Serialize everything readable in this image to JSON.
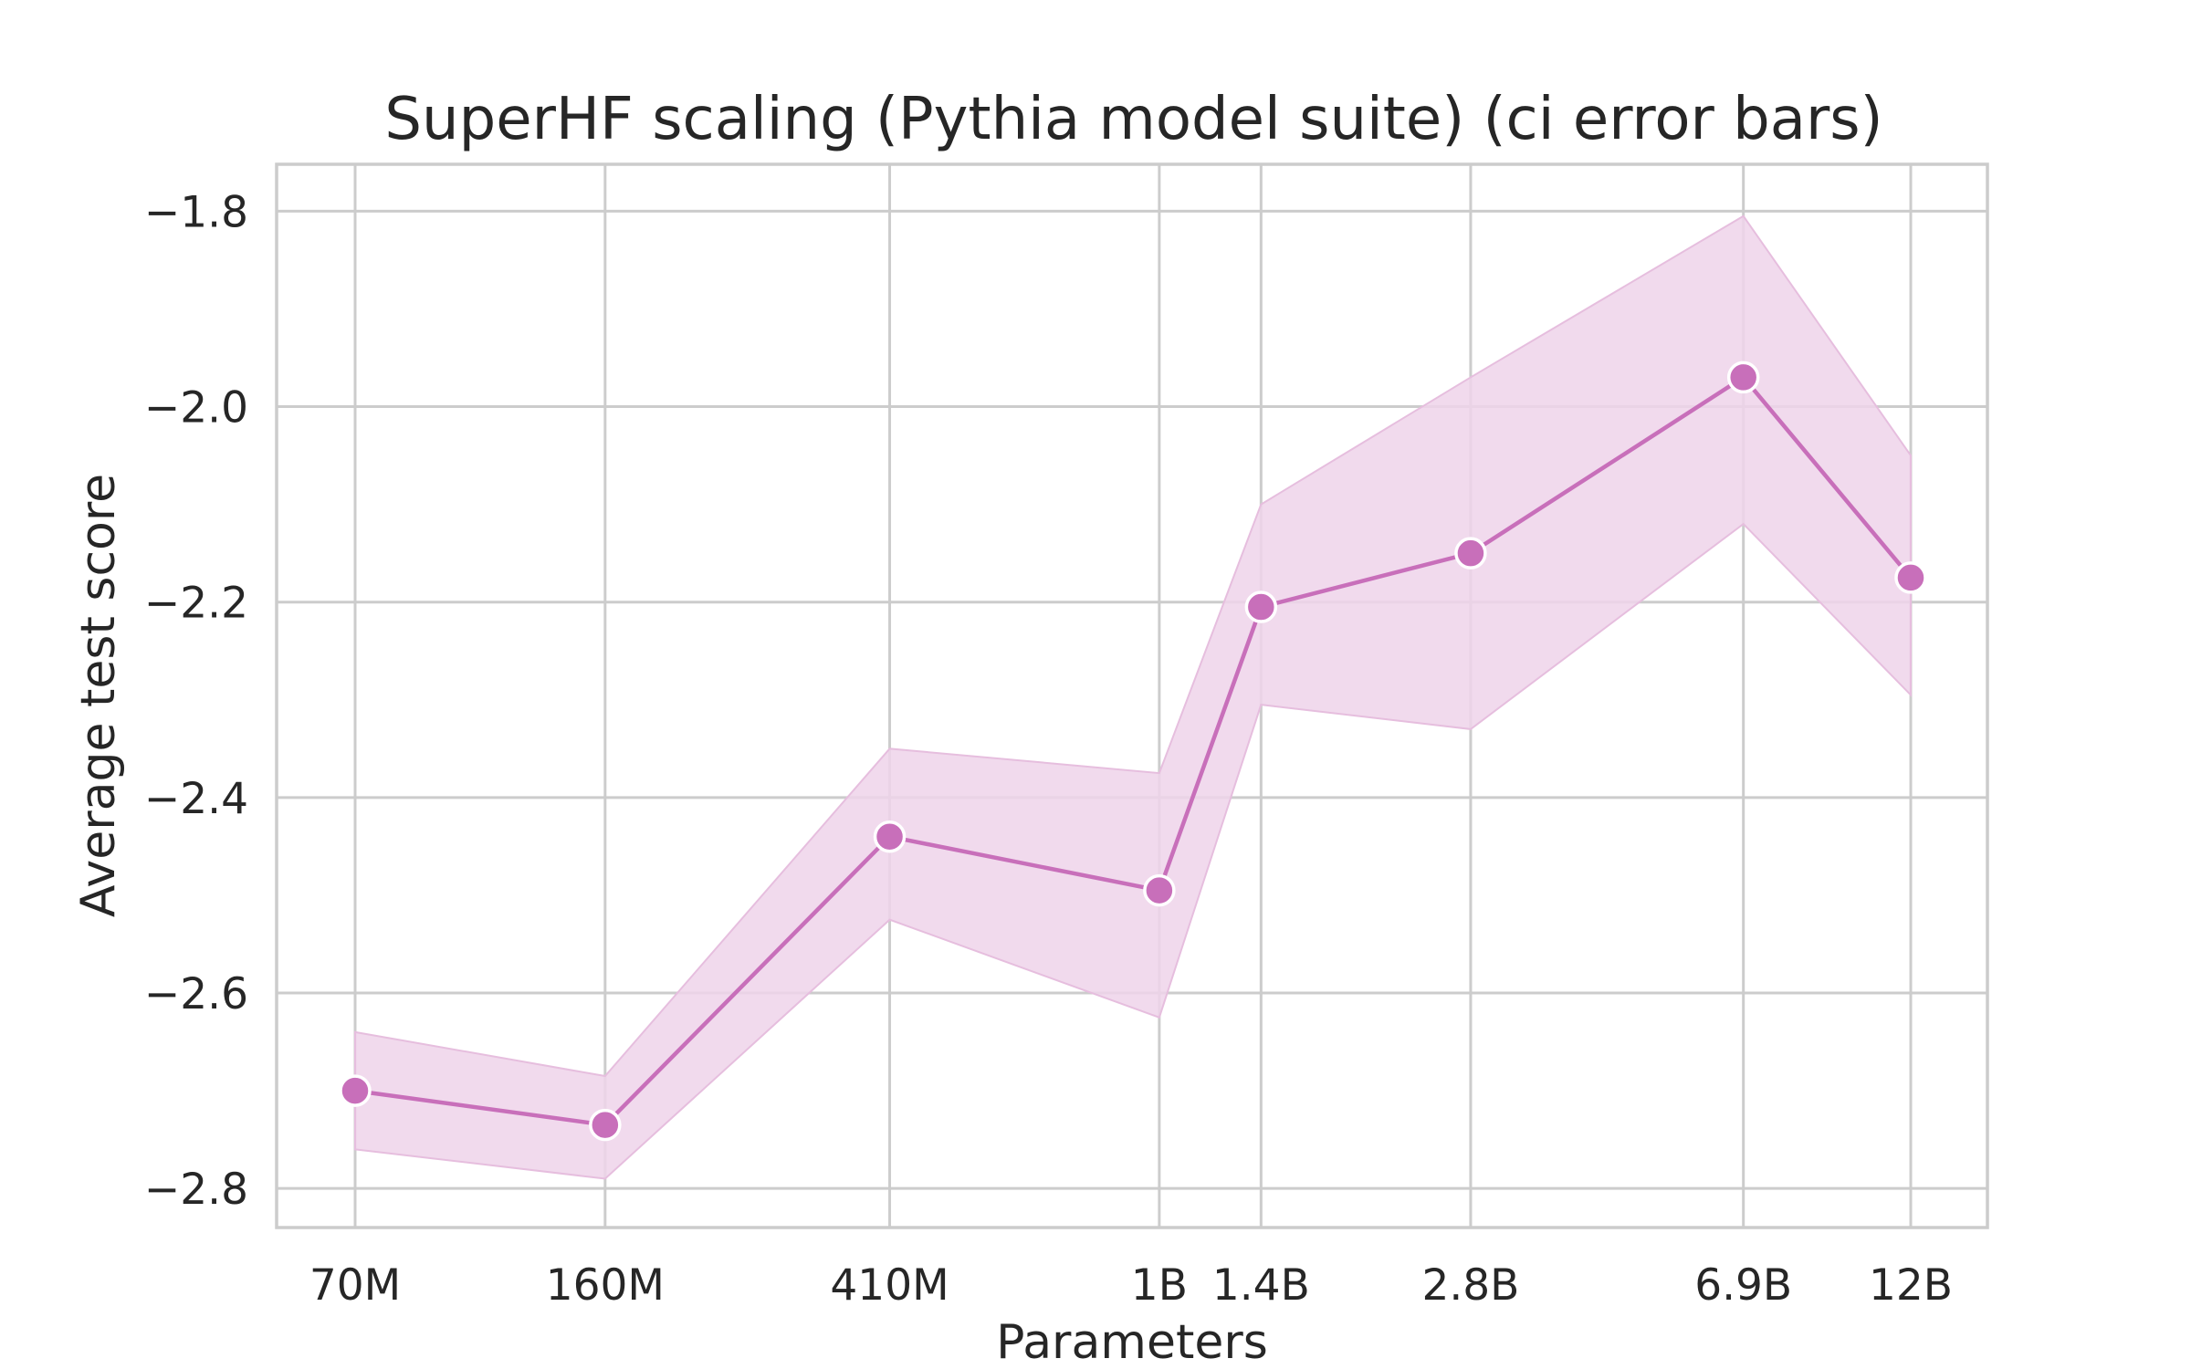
{
  "colors": {
    "line": "#c86fba",
    "marker": "#c86fba",
    "marker_edge": "#ffffff",
    "band": "#efd4ea",
    "band_edge": "#e6bede",
    "grid": "#cccccc",
    "text": "#262626"
  },
  "chart_data": {
    "type": "line",
    "title": "SuperHF scaling (Pythia model suite) (ci error bars)",
    "xlabel": "Parameters",
    "ylabel": "Average test score",
    "x_scale": "log",
    "x": [
      70000000,
      160000000,
      410000000,
      1000000000,
      1400000000,
      2800000000,
      6900000000,
      12000000000
    ],
    "categories": [
      "70M",
      "160M",
      "410M",
      "1B",
      "1.4B",
      "2.8B",
      "6.9B",
      "12B"
    ],
    "series": [
      {
        "values": [
          -2.7,
          -2.735,
          -2.44,
          -2.495,
          -2.205,
          -2.15,
          -1.97,
          -2.175
        ],
        "ci_upper": [
          -2.64,
          -2.685,
          -2.35,
          -2.375,
          -2.1,
          -1.97,
          -1.805,
          -2.05
        ],
        "ci_lower": [
          -2.76,
          -2.79,
          -2.525,
          -2.625,
          -2.305,
          -2.33,
          -2.12,
          -2.295
        ]
      }
    ],
    "ylim": [
      -2.84,
      -1.752
    ],
    "yticks": [
      -2.8,
      -2.6,
      -2.4,
      -2.2,
      -2.0,
      -1.8
    ],
    "ytick_labels": [
      "−2.8",
      "−2.6",
      "−2.4",
      "−2.2",
      "−2.0",
      "−1.8"
    ],
    "grid": true,
    "legend": "none"
  }
}
